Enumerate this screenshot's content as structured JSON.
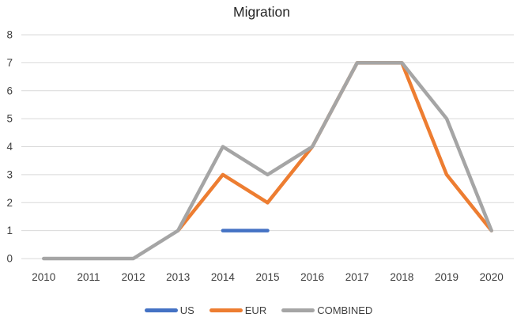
{
  "chart_data": {
    "type": "line",
    "title": "Migration",
    "x": [
      "2010",
      "2011",
      "2012",
      "2013",
      "2014",
      "2015",
      "2016",
      "2017",
      "2018",
      "2019",
      "2020"
    ],
    "series": [
      {
        "name": "US",
        "color": "#4472C4",
        "values": [
          null,
          null,
          null,
          null,
          1,
          1,
          null,
          null,
          null,
          null,
          null
        ]
      },
      {
        "name": "EUR",
        "color": "#ED7D31",
        "values": [
          null,
          null,
          null,
          1,
          3,
          2,
          4,
          7,
          7,
          3,
          1
        ]
      },
      {
        "name": "COMBINED",
        "color": "#A5A5A5",
        "values": [
          0,
          0,
          0,
          1,
          4,
          3,
          4,
          7,
          7,
          5,
          1
        ]
      }
    ],
    "ylim": [
      0,
      8
    ],
    "yticks": [
      0,
      1,
      2,
      3,
      4,
      5,
      6,
      7,
      8
    ],
    "grid": true,
    "legend_position": "bottom",
    "gridline_color": "#D9D9D9",
    "tick_label_color": "#404040",
    "title_color": "#262626",
    "background": "#FFFFFF"
  }
}
